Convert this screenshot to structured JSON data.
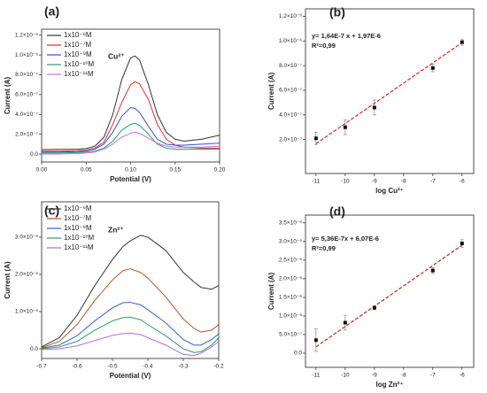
{
  "chart_data": [
    {
      "type": "line",
      "panel_label": "(a)",
      "annotation": "Cu²⁺",
      "xlabel": "Potential (V)",
      "ylabel": "Current (A)",
      "x": [
        0,
        0.02,
        0.04,
        0.05,
        0.06,
        0.07,
        0.08,
        0.09,
        0.1,
        0.105,
        0.11,
        0.12,
        0.13,
        0.14,
        0.15,
        0.16,
        0.18,
        0.2
      ],
      "series": [
        {
          "name": "1x10⁻⁶M",
          "color": "#333333",
          "values": [
            4.5e-08,
            4.7e-08,
            5e-08,
            5.5e-08,
            8e-08,
            1.7e-07,
            4e-07,
            7.5e-07,
            9.7e-07,
            9.9e-07,
            9.5e-07,
            7e-07,
            4e-07,
            2.2e-07,
            1.5e-07,
            1.3e-07,
            1.5e-07,
            1.9e-07
          ]
        },
        {
          "name": "1x10⁻⁷M",
          "color": "#e03030",
          "values": [
            3e-08,
            3e-08,
            3.5e-08,
            4e-08,
            6e-08,
            1.2e-07,
            3e-07,
            5.2e-07,
            7e-07,
            7.3e-07,
            7.1e-07,
            5.5e-07,
            3e-07,
            1.5e-07,
            9e-08,
            7e-08,
            6e-08,
            6e-08
          ]
        },
        {
          "name": "1x10⁻⁹M",
          "color": "#3050e0",
          "values": [
            2e-08,
            2e-08,
            2.5e-08,
            3e-08,
            5e-08,
            1e-07,
            2.2e-07,
            3.8e-07,
            4.7e-07,
            4.6e-07,
            4.2e-07,
            2.8e-07,
            1.5e-07,
            1e-07,
            9e-08,
            9e-08,
            1e-07,
            1.1e-07
          ]
        },
        {
          "name": "1x10⁻¹⁰M",
          "color": "#20a070",
          "values": [
            1e-08,
            1e-08,
            1.5e-08,
            2e-08,
            3e-08,
            6e-08,
            1.3e-07,
            2.4e-07,
            3e-07,
            3.1e-07,
            2.9e-07,
            2e-07,
            1e-07,
            6e-08,
            5e-08,
            5e-08,
            5e-08,
            5e-08
          ]
        },
        {
          "name": "1x10⁻¹¹M",
          "color": "#c070e0",
          "values": [
            0,
            0,
            5e-09,
            1e-08,
            2e-08,
            5e-08,
            1e-07,
            1.7e-07,
            2.1e-07,
            2.2e-07,
            2.1e-07,
            1.6e-07,
            1.1e-07,
            8e-08,
            7e-08,
            7e-08,
            7e-08,
            8e-08
          ]
        }
      ],
      "xlim": [
        0,
        0.2
      ],
      "xticks": [
        {
          "value": 0,
          "label": "0.00"
        },
        0.05,
        {
          "value": 0.1,
          "label": "0.10"
        },
        0.15,
        {
          "value": 0.2,
          "label": "0.20"
        }
      ],
      "ylim": [
        -8e-08,
        1.26e-06
      ],
      "yticks": [
        {
          "value": 0,
          "label": "0.0"
        },
        {
          "value": 2e-07,
          "label": "2.0×10⁻⁷"
        },
        {
          "value": 4e-07,
          "label": "4.0×10⁻⁷"
        },
        {
          "value": 6e-07,
          "label": "6.0×10⁻⁷"
        },
        {
          "value": 8e-07,
          "label": "8.0×10⁻⁷"
        },
        {
          "value": 1e-06,
          "label": "1.0×10⁻⁶"
        },
        {
          "value": 1.2e-06,
          "label": "1.2×10⁻⁶"
        }
      ]
    },
    {
      "type": "scatter",
      "panel_label": "(b)",
      "equation": "y= 1,64E-7 x + 1,97E-6",
      "r2": "R²=0,99",
      "xlabel": "log Cu²⁺",
      "ylabel": "Current (A)",
      "x": [
        -11,
        -10,
        -9,
        -7,
        -6
      ],
      "values": [
        2.1e-07,
        3e-07,
        4.6e-07,
        7.8e-07,
        9.9e-07
      ],
      "errors": [
        5e-08,
        6e-08,
        6e-08,
        3e-08,
        2.5e-08
      ],
      "color": "#111111",
      "fit": {
        "x": [
          -11,
          -6
        ],
        "values": [
          1.66e-07,
          9.86e-07
        ],
        "color": "#e02020"
      },
      "xlim": [
        -11.36,
        -5.6
      ],
      "xticks": [
        -11,
        -10,
        -9,
        -8,
        -7,
        -6
      ],
      "ylim": [
        -7.5e-08,
        1.26e-06
      ],
      "yticks": [
        {
          "value": 2e-07,
          "label": "2.0×10⁻⁷"
        },
        {
          "value": 4e-07,
          "label": "4.0×10⁻⁷"
        },
        {
          "value": 6e-07,
          "label": "6.0×10⁻⁷"
        },
        {
          "value": 8e-07,
          "label": "8.0×10⁻⁷"
        },
        {
          "value": 1e-06,
          "label": "1.0×10⁻⁶"
        },
        {
          "value": 1.2e-06,
          "label": "1.2×10⁻⁶"
        }
      ]
    },
    {
      "type": "line",
      "panel_label": "(c)",
      "annotation": "Zn²⁺",
      "xlabel": "Potential (V)",
      "ylabel": "Current (A)",
      "x": [
        -0.7,
        -0.65,
        -0.6,
        -0.55,
        -0.5,
        -0.47,
        -0.45,
        -0.42,
        -0.4,
        -0.35,
        -0.3,
        -0.27,
        -0.25,
        -0.22,
        -0.2
      ],
      "series": [
        {
          "name": "1x10⁻⁶M",
          "color": "#333333",
          "values": [
            5e-08,
            3e-07,
            9e-07,
            1.7e-06,
            2.4e-06,
            2.75e-06,
            2.9e-06,
            3.05e-06,
            3e-06,
            2.65e-06,
            2.05e-06,
            1.8e-06,
            1.65e-06,
            1.6e-06,
            1.7e-06
          ]
        },
        {
          "name": "1x10⁻⁷M",
          "color": "#b5542a",
          "values": [
            3e-08,
            2e-07,
            6.5e-07,
            1.3e-06,
            1.85e-06,
            2.1e-06,
            2.15e-06,
            2.05e-06,
            1.9e-06,
            1.4e-06,
            8e-07,
            5.5e-07,
            4.5e-07,
            5e-07,
            6.5e-07
          ]
        },
        {
          "name": "1x10⁻⁹M",
          "color": "#3a5bd9",
          "values": [
            2e-08,
            1e-07,
            3.5e-07,
            7.5e-07,
            1.1e-06,
            1.24e-06,
            1.25e-06,
            1.18e-06,
            1.05e-06,
            7e-07,
            2.5e-07,
            1e-07,
            1e-07,
            2.5e-07,
            4e-07
          ]
        },
        {
          "name": "1x10⁻¹⁰M",
          "color": "#2e9a6a",
          "values": [
            0,
            5e-08,
            2e-07,
            5e-07,
            7.5e-07,
            8.4e-07,
            8.5e-07,
            7.8e-07,
            6.5e-07,
            3.5e-07,
            0,
            -1e-07,
            -8e-08,
            1e-07,
            3e-07
          ]
        },
        {
          "name": "1x10⁻¹¹M",
          "color": "#b06ad0",
          "values": [
            -2e-08,
            0,
            8e-08,
            2.2e-07,
            3.6e-07,
            4.1e-07,
            4.2e-07,
            3.8e-07,
            3e-07,
            1e-07,
            -1.5e-07,
            -1.8e-07,
            -1.2e-07,
            5e-08,
            2e-07
          ]
        }
      ],
      "xlim": [
        -0.7,
        -0.2
      ],
      "xticks": [
        -0.7,
        -0.6,
        -0.5,
        -0.4,
        -0.3,
        -0.2
      ],
      "ylim": [
        -2.6e-07,
        3.95e-06
      ],
      "yticks": [
        {
          "value": 0,
          "label": "0.0"
        },
        {
          "value": 1e-06,
          "label": "1.0×10⁻⁶"
        },
        {
          "value": 2e-06,
          "label": "2.0×10⁻⁶"
        },
        {
          "value": 3e-06,
          "label": "3.0×10⁻⁶"
        }
      ]
    },
    {
      "type": "scatter",
      "panel_label": "(d)",
      "equation": "y= 5,36E-7x + 6,07E-6",
      "r2": "R²=0,99",
      "xlabel": "log Zn²⁺",
      "ylabel": "Current (A)",
      "x": [
        -11,
        -10,
        -9,
        -7,
        -6
      ],
      "values": [
        3.5e-07,
        8.2e-07,
        1.22e-06,
        2.22e-06,
        2.95e-06
      ],
      "errors": [
        3e-07,
        2e-07,
        5e-08,
        8e-08,
        1e-07
      ],
      "color": "#111111",
      "fit": {
        "x": [
          -11,
          -6
        ],
        "values": [
          1.7e-07,
          2.9e-06
        ],
        "color": "#b03010"
      },
      "xlim": [
        -11.36,
        -5.6
      ],
      "xticks": [
        -11,
        -10,
        -9,
        -8,
        -7,
        -6
      ],
      "ylim": [
        -3.8e-07,
        3.71e-06
      ],
      "yticks": [
        {
          "value": 0,
          "label": "0.0"
        },
        {
          "value": 5e-07,
          "label": "5.0×10⁻⁷"
        },
        {
          "value": 1e-06,
          "label": "1.0×10⁻⁶"
        },
        {
          "value": 1.5e-06,
          "label": "1.5×10⁻⁶"
        },
        {
          "value": 2e-06,
          "label": "2.0×10⁻⁶"
        },
        {
          "value": 2.5e-06,
          "label": "2.5×10⁻⁶"
        },
        {
          "value": 3e-06,
          "label": "3.0×10⁻⁶"
        },
        {
          "value": 3.5e-06,
          "label": "3.5×10⁻⁶"
        }
      ]
    }
  ]
}
